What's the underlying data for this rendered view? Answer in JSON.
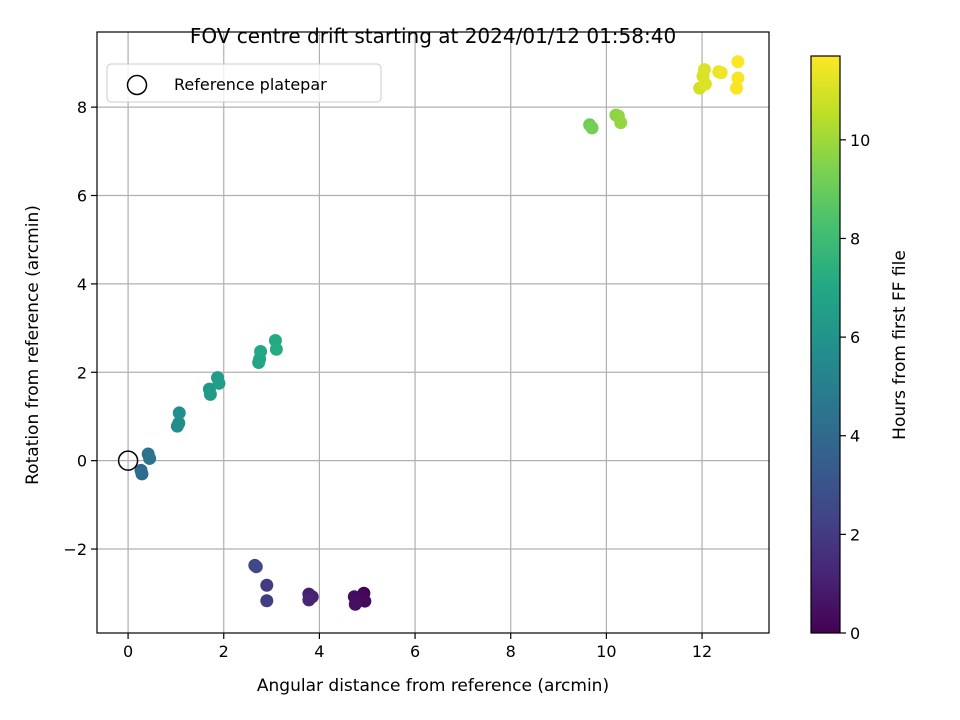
{
  "chart_data": {
    "type": "scatter",
    "title": "FOV centre drift starting at 2024/01/12 01:58:40",
    "xlabel": "Angular distance from reference (arcmin)",
    "ylabel": "Rotation from reference (arcmin)",
    "xlim": [
      -0.65,
      13.4
    ],
    "ylim": [
      -3.9,
      9.7
    ],
    "xticks": [
      0,
      2,
      4,
      6,
      8,
      10,
      12
    ],
    "yticks": [
      -2,
      0,
      2,
      4,
      6,
      8
    ],
    "xtick_labels": [
      "0",
      "2",
      "4",
      "6",
      "8",
      "10",
      "12"
    ],
    "ytick_labels": [
      "−2",
      "0",
      "2",
      "4",
      "6",
      "8"
    ],
    "grid": true,
    "legend": {
      "placement": "top-left",
      "entries": [
        "Reference platepar"
      ]
    },
    "reference_point": {
      "x": 0,
      "y": 0
    },
    "colorbar": {
      "label": "Hours from first FF file",
      "colormap": "viridis",
      "range": [
        0,
        11.7
      ],
      "ticks": [
        0,
        2,
        4,
        6,
        8,
        10
      ],
      "tick_labels": [
        "0",
        "2",
        "4",
        "6",
        "8",
        "10"
      ]
    },
    "points": [
      {
        "x": 4.93,
        "y": -3.0,
        "h": 0.1
      },
      {
        "x": 4.88,
        "y": -3.08,
        "h": 0.2
      },
      {
        "x": 4.95,
        "y": -3.18,
        "h": 0.3
      },
      {
        "x": 4.73,
        "y": -3.08,
        "h": 0.4
      },
      {
        "x": 4.75,
        "y": -3.25,
        "h": 0.5
      },
      {
        "x": 3.78,
        "y": -3.02,
        "h": 1.0
      },
      {
        "x": 3.85,
        "y": -3.08,
        "h": 1.1
      },
      {
        "x": 3.78,
        "y": -3.15,
        "h": 1.2
      },
      {
        "x": 2.9,
        "y": -2.82,
        "h": 2.0
      },
      {
        "x": 2.9,
        "y": -3.17,
        "h": 2.1
      },
      {
        "x": 2.65,
        "y": -2.37,
        "h": 2.4
      },
      {
        "x": 2.68,
        "y": -2.4,
        "h": 2.5
      },
      {
        "x": 0.27,
        "y": -0.22,
        "h": 4.0
      },
      {
        "x": 0.29,
        "y": -0.3,
        "h": 4.1
      },
      {
        "x": 0.42,
        "y": 0.15,
        "h": 4.4
      },
      {
        "x": 0.45,
        "y": 0.05,
        "h": 4.5
      },
      {
        "x": 1.03,
        "y": 0.78,
        "h": 5.6
      },
      {
        "x": 1.06,
        "y": 0.85,
        "h": 5.7
      },
      {
        "x": 1.07,
        "y": 1.08,
        "h": 5.8
      },
      {
        "x": 1.7,
        "y": 1.62,
        "h": 6.2
      },
      {
        "x": 1.72,
        "y": 1.5,
        "h": 6.3
      },
      {
        "x": 1.87,
        "y": 1.88,
        "h": 6.4
      },
      {
        "x": 1.9,
        "y": 1.75,
        "h": 6.5
      },
      {
        "x": 2.73,
        "y": 2.22,
        "h": 6.8
      },
      {
        "x": 2.75,
        "y": 2.3,
        "h": 6.9
      },
      {
        "x": 2.77,
        "y": 2.47,
        "h": 7.0
      },
      {
        "x": 3.08,
        "y": 2.72,
        "h": 7.1
      },
      {
        "x": 3.1,
        "y": 2.52,
        "h": 7.2
      },
      {
        "x": 9.65,
        "y": 7.6,
        "h": 9.1
      },
      {
        "x": 9.7,
        "y": 7.53,
        "h": 9.2
      },
      {
        "x": 10.2,
        "y": 7.82,
        "h": 9.6
      },
      {
        "x": 10.25,
        "y": 7.8,
        "h": 9.7
      },
      {
        "x": 10.3,
        "y": 7.65,
        "h": 9.8
      },
      {
        "x": 11.95,
        "y": 8.43,
        "h": 10.9
      },
      {
        "x": 12.02,
        "y": 8.7,
        "h": 11.0
      },
      {
        "x": 12.05,
        "y": 8.85,
        "h": 11.1
      },
      {
        "x": 12.07,
        "y": 8.52,
        "h": 11.1
      },
      {
        "x": 12.35,
        "y": 8.8,
        "h": 11.3
      },
      {
        "x": 12.4,
        "y": 8.78,
        "h": 11.4
      },
      {
        "x": 12.72,
        "y": 8.43,
        "h": 11.6
      },
      {
        "x": 12.75,
        "y": 8.66,
        "h": 11.6
      },
      {
        "x": 12.75,
        "y": 9.03,
        "h": 11.7
      }
    ]
  }
}
